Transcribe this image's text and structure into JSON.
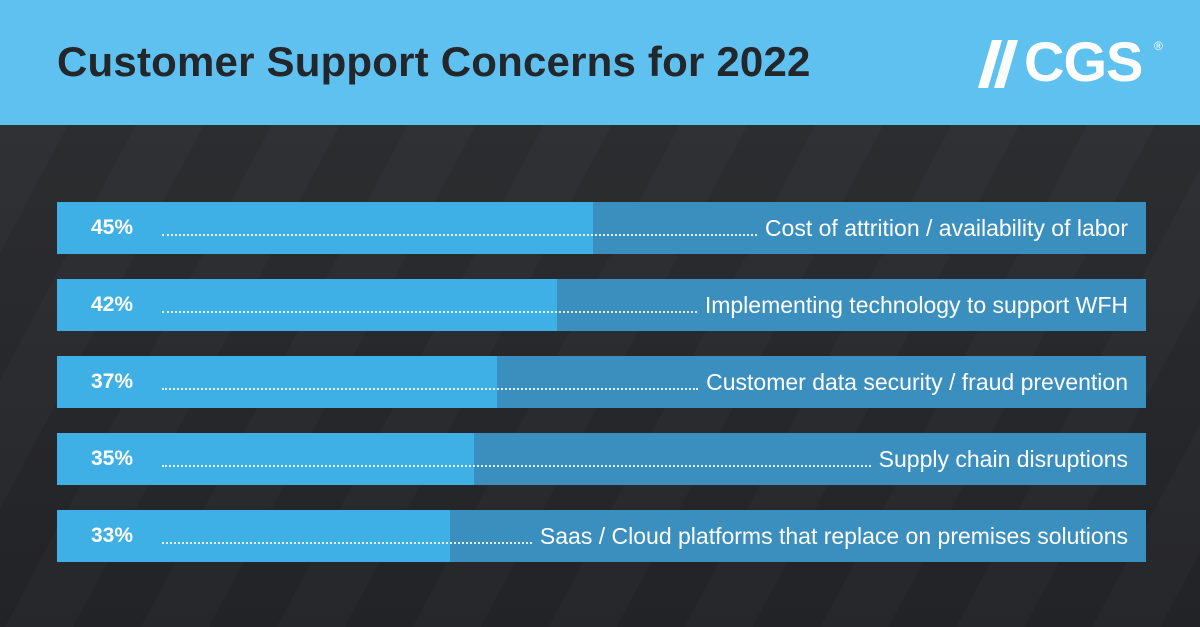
{
  "header": {
    "title": "Customer Support Concerns for 2022",
    "logo_text": "CGS",
    "logo_reg": "®",
    "logo_icon": "cgs-slash-mark"
  },
  "colors": {
    "header_bg": "#5fc1ef",
    "bar_fill": "#3fb0e6",
    "bar_track": "#3a8fbf",
    "background": "#2a2b2e"
  },
  "chart_data": {
    "type": "bar",
    "orientation": "horizontal",
    "title": "Customer Support Concerns for 2022",
    "categories": [
      "Cost of attrition / availability of labor",
      "Implementing technology to support WFH",
      "Customer data security / fraud prevention",
      "Supply chain disruptions",
      "Saas / Cloud platforms that replace on premises solutions"
    ],
    "values": [
      45,
      42,
      37,
      35,
      33
    ],
    "value_labels": [
      "45%",
      "42%",
      "37%",
      "35%",
      "33%"
    ],
    "xlim": [
      0,
      100
    ],
    "grid": false,
    "legend": "none"
  }
}
